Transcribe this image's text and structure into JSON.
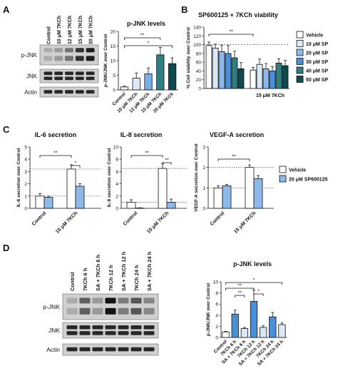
{
  "panels": {
    "A": "A",
    "B": "B",
    "C": "C",
    "D": "D"
  },
  "blots": {
    "A": {
      "lanes": [
        "Control",
        "10 μM 7KCh",
        "12 μM 7KCh",
        "15 μM 7KCh",
        "20 μM 7KCh"
      ],
      "rows": [
        "p-JNK",
        "JNK",
        "Actin"
      ],
      "pjnk_intensity": [
        0.15,
        0.25,
        0.45,
        0.8,
        0.9
      ]
    },
    "D": {
      "lanes": [
        "Control",
        "7KCh 6 h",
        "SA + 7KCh 6 h",
        "7KCh 12 h",
        "SA + 7KCh 12 h",
        "7KCh 24 h",
        "SA + 7KCh 24 h"
      ],
      "rows": [
        "p-JNK",
        "JNK",
        "Actin"
      ],
      "pjnk_intensity": [
        0.15,
        0.55,
        0.25,
        0.95,
        0.4,
        0.6,
        0.35
      ]
    }
  },
  "chart_data": [
    {
      "id": "A-bar",
      "type": "bar",
      "title": "p-JNK levels",
      "ylabel": "p-JNK/JNK over Control",
      "categories": [
        "Control",
        "10 μM 7KCh",
        "12 μM 7KCh",
        "15 μM 7KCh",
        "20 μM 7KCh"
      ],
      "values": [
        1.0,
        4.0,
        5.5,
        12.0,
        9.0
      ],
      "errors": [
        0.3,
        1.8,
        2.0,
        2.5,
        2.0
      ],
      "colors": [
        "#ffffff",
        "#dbe8f7",
        "#7aaee6",
        "#2f7f82",
        "#0f4a4e"
      ],
      "ylim": [
        0,
        20
      ],
      "yticks": [
        0,
        5,
        10,
        15,
        20
      ],
      "sig": [
        {
          "label": "**"
        },
        {
          "label": "*"
        }
      ]
    },
    {
      "id": "B-bar",
      "type": "bar",
      "title": "SP600125 + 7KCh viability",
      "ylabel": "% Cell viability over Control",
      "groups": [
        "",
        "15 μM 7KCh"
      ],
      "series": [
        {
          "name": "Vehicle",
          "color": "#ffffff",
          "values": [
            98,
            42
          ],
          "errors": [
            8,
            6
          ]
        },
        {
          "name": "10 μM SP",
          "color": "#dbe8f7",
          "values": [
            92,
            55
          ],
          "errors": [
            9,
            12
          ]
        },
        {
          "name": "20 μM SP",
          "color": "#8db9ea",
          "values": [
            84,
            45
          ],
          "errors": [
            15,
            12
          ]
        },
        {
          "name": "30 μM SP",
          "color": "#4a8fd8",
          "values": [
            80,
            40
          ],
          "errors": [
            18,
            10
          ]
        },
        {
          "name": "40 μM SP",
          "color": "#2f7f82",
          "values": [
            70,
            58
          ],
          "errors": [
            15,
            10
          ]
        },
        {
          "name": "50 μM SP",
          "color": "#0f4a4e",
          "values": [
            45,
            52
          ],
          "errors": [
            14,
            12
          ]
        }
      ],
      "ylim": [
        0,
        140
      ],
      "yticks": [
        0,
        20,
        40,
        60,
        80,
        100,
        120,
        140
      ],
      "reference_line": 100,
      "sig": [
        {
          "label": "**"
        }
      ]
    },
    {
      "id": "C-IL6",
      "type": "bar",
      "title": "IL-6 secretion",
      "ylabel": "IL-6 secretion over Control",
      "groups": [
        "Control",
        "15 μM 7KCh"
      ],
      "series": [
        {
          "name": "Vehicle",
          "color": "#ffffff",
          "values": [
            1.0,
            3.2
          ],
          "errors": [
            0.2,
            0.35
          ]
        },
        {
          "name": "20 μM SP600125",
          "color": "#8db9ea",
          "values": [
            0.9,
            1.8
          ],
          "errors": [
            0.1,
            0.2
          ]
        }
      ],
      "ylim": [
        0,
        5
      ],
      "yticks": [
        0,
        1,
        2,
        3,
        4,
        5
      ],
      "reference_lines": [
        1,
        3.2
      ],
      "sig": [
        {
          "label": "**"
        },
        {
          "label": "*"
        }
      ]
    },
    {
      "id": "C-IL8",
      "type": "bar",
      "title": "IL-8 secretion",
      "ylabel": "IL-8 secretion over Control",
      "groups": [
        "Control",
        "15 μM 7KCh"
      ],
      "series": [
        {
          "name": "Vehicle",
          "color": "#ffffff",
          "values": [
            1.0,
            6.5
          ],
          "errors": [
            0.4,
            0.8
          ]
        },
        {
          "name": "20 μM SP600125",
          "color": "#8db9ea",
          "values": [
            0.05,
            1.0
          ],
          "errors": [
            0.05,
            0.5
          ]
        }
      ],
      "ylim": [
        0,
        10
      ],
      "yticks": [
        0,
        2,
        4,
        6,
        8,
        10
      ],
      "reference_lines": [
        1,
        6.5
      ],
      "sig": [
        {
          "label": "**"
        },
        {
          "label": "**"
        }
      ]
    },
    {
      "id": "C-VEGF",
      "type": "bar",
      "title": "VEGF-A secretion",
      "ylabel": "VEGF-A secretion over Control",
      "groups": [
        "Control",
        "15 μM 7KCh"
      ],
      "series": [
        {
          "name": "Vehicle",
          "color": "#ffffff",
          "values": [
            1.0,
            2.0
          ],
          "errors": [
            0.1,
            0.12
          ]
        },
        {
          "name": "20 μM SP600125",
          "color": "#8db9ea",
          "values": [
            1.1,
            1.45
          ],
          "errors": [
            0.07,
            0.15
          ]
        }
      ],
      "ylim": [
        0,
        3
      ],
      "yticks": [
        0,
        1,
        2,
        3
      ],
      "reference_lines": [
        1,
        2
      ],
      "sig": [
        {
          "label": "**"
        }
      ]
    },
    {
      "id": "D-bar",
      "type": "bar",
      "title": "p-JNK levels",
      "ylabel": "p-JNK/JNK over Control",
      "categories": [
        "Control",
        "7KCh 6 h",
        "SA + 7KCh 6 h",
        "7KCh 12 h",
        "SA + 7KCh 12 h",
        "7KCh 24 h",
        "SA + 7KCh 24 h"
      ],
      "values": [
        1.0,
        4.2,
        1.6,
        6.5,
        1.8,
        3.7,
        2.3
      ],
      "errors": [
        0.1,
        0.7,
        0.2,
        2.0,
        0.3,
        0.8,
        0.3
      ],
      "colors": [
        "#ffffff",
        "#4a8fd8",
        "#dbe8f7",
        "#4a8fd8",
        "#dbe8f7",
        "#4a8fd8",
        "#dbe8f7"
      ],
      "ylim": [
        0,
        10
      ],
      "yticks": [
        0,
        2,
        4,
        6,
        8,
        10
      ],
      "sig": [
        {
          "label": "*"
        },
        {
          "label": "**"
        },
        {
          "label": "**"
        },
        {
          "label": "*"
        }
      ]
    }
  ]
}
